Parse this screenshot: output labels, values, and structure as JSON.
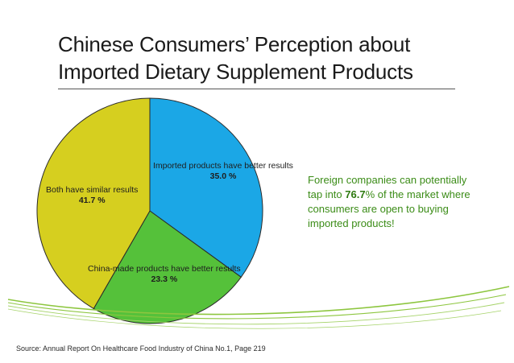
{
  "title": {
    "line1": "Chinese Consumers’ Perception about",
    "line2": "Imported Dietary Supplement Products"
  },
  "chart_data": {
    "type": "pie",
    "slices": [
      {
        "label": "Imported products have better results",
        "value": 35.0,
        "value_text": "35.0 %",
        "color": "#1ba7e6"
      },
      {
        "label": "China-made products have better results",
        "value": 23.3,
        "value_text": "23.3 %",
        "color": "#55c13a"
      },
      {
        "label": "Both have similar results",
        "value": 41.7,
        "value_text": "41.7 %",
        "color": "#d6cf1f"
      }
    ]
  },
  "callout": {
    "before": "Foreign companies can potentially tap into ",
    "highlight": "76.7",
    "after": "% of the market where consumers are open to buying imported products!"
  },
  "source": "Source: Annual Report On Healthcare Food Industry of China  No.1, Page 219",
  "colors": {
    "accent_green": "#3b8c17",
    "swoosh": "#8dc63f"
  }
}
